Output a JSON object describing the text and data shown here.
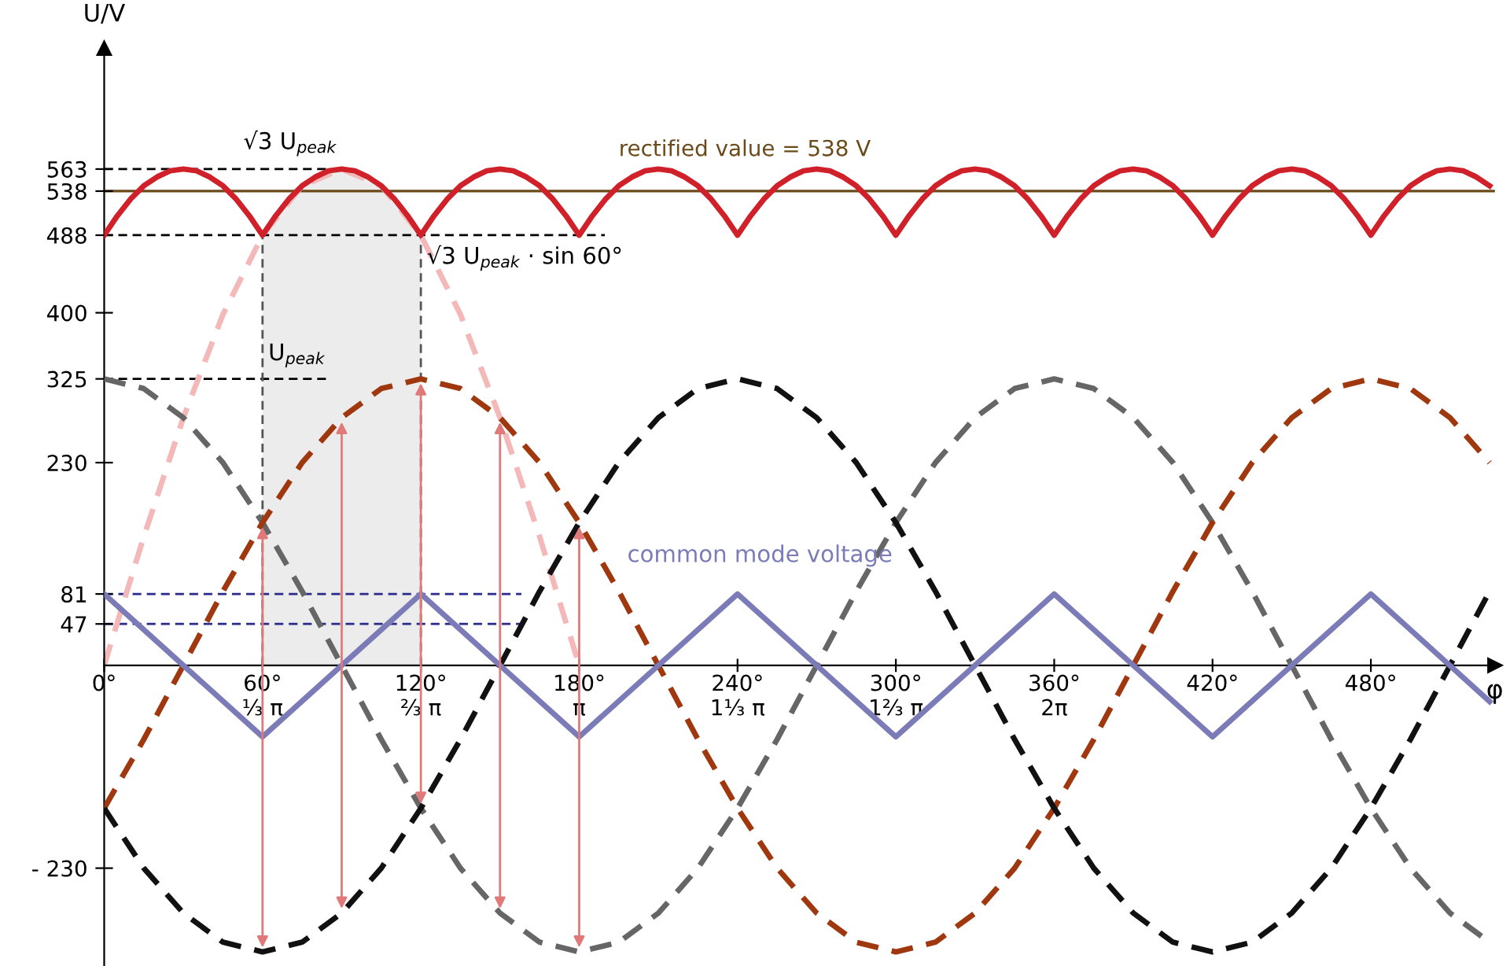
{
  "chart_data": {
    "type": "line",
    "xlabel": "φ",
    "ylabel": "U/V",
    "xlim": [
      0,
      527
    ],
    "ylim": [
      -341,
      700
    ],
    "xticks": [
      {
        "value": 0,
        "label": "0°"
      },
      {
        "value": 60,
        "label": "60°\n⅓ π"
      },
      {
        "value": 120,
        "label": "120°\n⅔ π"
      },
      {
        "value": 180,
        "label": "180°\nπ"
      },
      {
        "value": 240,
        "label": "240°\n1⅓ π"
      },
      {
        "value": 300,
        "label": "300°\n1⅔ π"
      },
      {
        "value": 360,
        "label": "360°\n2π"
      },
      {
        "value": 420,
        "label": "420°"
      },
      {
        "value": 480,
        "label": "480°"
      }
    ],
    "yticks": [
      563,
      538,
      488,
      400,
      325,
      230,
      81,
      47,
      {
        "value": -230,
        "label": "- 230"
      }
    ],
    "grid": false,
    "marker": "none",
    "series": [
      {
        "color": "#f4b8b8",
        "line_style": "dashed",
        "x": [
          0,
          15,
          30,
          45,
          60,
          75,
          90,
          105,
          120,
          135,
          150,
          165,
          180
        ],
        "values": [
          0,
          146,
          281,
          398,
          488,
          544,
          563,
          544,
          488,
          398,
          281,
          146,
          0
        ]
      },
      {
        "color": "#666666",
        "line_style": "dashed",
        "x": [
          0,
          15,
          30,
          45,
          60,
          75,
          90,
          105,
          120,
          135,
          150,
          165,
          180,
          195,
          210,
          225,
          240,
          255,
          270,
          285,
          300,
          315,
          330,
          345,
          360,
          375,
          390,
          405,
          420,
          435,
          450,
          465,
          480,
          495,
          510,
          525
        ],
        "values": [
          325,
          314,
          281,
          230,
          162,
          84,
          0,
          -84,
          -162,
          -230,
          -281,
          -314,
          -325,
          -314,
          -281,
          -230,
          -162,
          -84,
          0,
          84,
          162,
          230,
          281,
          314,
          325,
          314,
          281,
          230,
          162,
          84,
          0,
          -84,
          -162,
          -230,
          -281,
          -314
        ]
      },
      {
        "color": "#a0380f",
        "line_style": "dashed",
        "x": [
          0,
          15,
          30,
          45,
          60,
          75,
          90,
          105,
          120,
          135,
          150,
          165,
          180,
          195,
          210,
          225,
          240,
          255,
          270,
          285,
          300,
          315,
          330,
          345,
          360,
          375,
          390,
          405,
          420,
          435,
          450,
          465,
          480,
          495,
          510,
          525
        ],
        "values": [
          -162,
          -84,
          0,
          84,
          162,
          230,
          281,
          314,
          325,
          314,
          281,
          230,
          162,
          84,
          0,
          -84,
          -162,
          -230,
          -281,
          -314,
          -325,
          -314,
          -281,
          -230,
          -162,
          -84,
          0,
          84,
          162,
          230,
          281,
          314,
          325,
          314,
          281,
          230
        ]
      },
      {
        "color": "#111111",
        "line_style": "dashed",
        "x": [
          0,
          15,
          30,
          45,
          60,
          75,
          90,
          105,
          120,
          135,
          150,
          165,
          180,
          195,
          210,
          225,
          240,
          255,
          270,
          285,
          300,
          315,
          330,
          345,
          360,
          375,
          390,
          405,
          420,
          435,
          450,
          465,
          480,
          495,
          510,
          525
        ],
        "values": [
          -162,
          -230,
          -281,
          -314,
          -325,
          -314,
          -281,
          -230,
          -162,
          -84,
          0,
          84,
          162,
          230,
          281,
          314,
          325,
          314,
          281,
          230,
          162,
          84,
          0,
          -84,
          -162,
          -230,
          -281,
          -314,
          -325,
          -314,
          -281,
          -230,
          -162,
          -84,
          0,
          84
        ]
      },
      {
        "name": "common mode voltage",
        "color": "#7b7bb8",
        "line_style": "solid",
        "x": [
          0,
          60,
          120,
          180,
          240,
          300,
          360,
          420,
          480,
          525
        ],
        "values": [
          81,
          -81,
          81,
          -81,
          81,
          -81,
          81,
          -81,
          81,
          -41
        ]
      },
      {
        "color": "#d0202a",
        "line_style": "solid",
        "x": [
          0,
          5,
          10,
          15,
          20,
          25,
          30,
          35,
          40,
          45,
          50,
          55,
          60,
          65,
          70,
          75,
          80,
          85,
          90,
          95,
          100,
          105,
          110,
          115,
          120,
          125,
          130,
          135,
          140,
          145,
          150,
          155,
          160,
          165,
          170,
          175,
          180,
          185,
          190,
          195,
          200,
          205,
          210,
          215,
          220,
          225,
          230,
          235,
          240,
          245,
          250,
          255,
          260,
          265,
          270,
          275,
          280,
          285,
          290,
          295,
          300,
          305,
          310,
          315,
          320,
          325,
          330,
          335,
          340,
          345,
          350,
          355,
          360,
          365,
          370,
          375,
          380,
          385,
          390,
          395,
          400,
          405,
          410,
          415,
          420,
          425,
          430,
          435,
          440,
          445,
          450,
          455,
          460,
          465,
          470,
          475,
          480,
          485,
          490,
          495,
          500,
          505,
          510,
          515,
          520,
          525
        ],
        "values": [
          488,
          510,
          529,
          544,
          554,
          561,
          563,
          561,
          554,
          544,
          529,
          510,
          488,
          510,
          529,
          544,
          554,
          561,
          563,
          561,
          554,
          544,
          529,
          510,
          488,
          510,
          529,
          544,
          554,
          561,
          563,
          561,
          554,
          544,
          529,
          510,
          488,
          510,
          529,
          544,
          554,
          561,
          563,
          561,
          554,
          544,
          529,
          510,
          488,
          510,
          529,
          544,
          554,
          561,
          563,
          561,
          554,
          544,
          529,
          510,
          488,
          510,
          529,
          544,
          554,
          561,
          563,
          561,
          554,
          544,
          529,
          510,
          488,
          510,
          529,
          544,
          554,
          561,
          563,
          561,
          554,
          544,
          529,
          510,
          488,
          510,
          529,
          544,
          554,
          561,
          563,
          561,
          554,
          544,
          529,
          510,
          488,
          510,
          529,
          544,
          554,
          561,
          563,
          561,
          554,
          544
        ]
      }
    ],
    "ref_lines": [
      {
        "axis": "y",
        "value": 563,
        "color": "#000000",
        "line_style": "dashed"
      },
      {
        "axis": "y",
        "value": 538,
        "color": "#6b4a1a",
        "line_style": "solid",
        "label": "rectified value = 538 V"
      },
      {
        "axis": "y",
        "value": 488,
        "color": "#000000",
        "line_style": "dashed"
      },
      {
        "axis": "y",
        "value": 325,
        "color": "#000000",
        "line_style": "dashed"
      },
      {
        "axis": "y",
        "value": 81,
        "color": "#2a2a8a",
        "line_style": "dashed"
      },
      {
        "axis": "y",
        "value": 47,
        "color": "#2a2a8a",
        "line_style": "dashed"
      },
      {
        "axis": "x",
        "value": 60,
        "color": "#555555",
        "line_style": "dashed"
      },
      {
        "axis": "x",
        "value": 120,
        "color": "#555555",
        "line_style": "dashed"
      }
    ],
    "bands": [
      {
        "axis": "x",
        "from": 60,
        "to": 120,
        "color": "#ececec"
      }
    ],
    "annotations": [
      "√3 U$_{peak}$",
      "√3 U$_{peak}$ · sin 60°",
      "U$_{peak}$"
    ]
  }
}
